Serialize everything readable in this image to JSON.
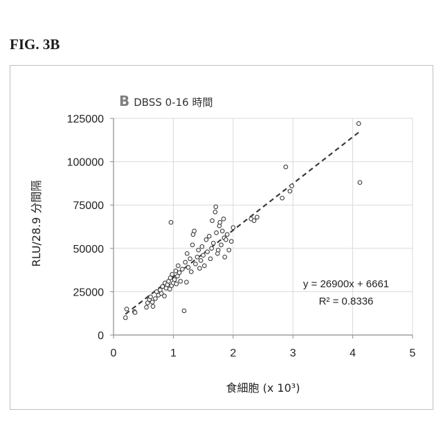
{
  "figure_label": "FIG. 3B",
  "chart_data": {
    "type": "scatter",
    "panel_letter": "B",
    "title": "DBSS 0-16 時間",
    "xlabel": "食細胞 (x 10³)",
    "ylabel": "RLU/28.9 分間隔",
    "xlim": [
      0,
      5
    ],
    "ylim": [
      0,
      125000
    ],
    "xticks": [
      "0",
      "1",
      "2",
      "3",
      "4",
      "5"
    ],
    "yticks": [
      "0",
      "25000",
      "50000",
      "75000",
      "100000",
      "125000"
    ],
    "grid": true,
    "trendline": {
      "slope": 26900,
      "intercept": 6661,
      "style": "dashed"
    },
    "annotations": [
      "y = 26900x + 6661",
      "R² = 0.8336"
    ],
    "points": [
      [
        0.2,
        10000
      ],
      [
        0.22,
        15000
      ],
      [
        0.35,
        13500
      ],
      [
        0.36,
        13000
      ],
      [
        0.55,
        16000
      ],
      [
        0.57,
        18500
      ],
      [
        0.6,
        20500
      ],
      [
        0.62,
        22000
      ],
      [
        0.65,
        19000
      ],
      [
        0.66,
        16500
      ],
      [
        0.7,
        21000
      ],
      [
        0.72,
        25000
      ],
      [
        0.75,
        23000
      ],
      [
        0.78,
        26000
      ],
      [
        0.8,
        24000
      ],
      [
        0.82,
        28000
      ],
      [
        0.85,
        22500
      ],
      [
        0.86,
        30000
      ],
      [
        0.88,
        27000
      ],
      [
        0.9,
        29000
      ],
      [
        0.92,
        31000
      ],
      [
        0.94,
        26500
      ],
      [
        0.95,
        33000
      ],
      [
        0.96,
        65000
      ],
      [
        0.97,
        28500
      ],
      [
        0.98,
        35000
      ],
      [
        1.0,
        30000
      ],
      [
        1.02,
        32000
      ],
      [
        1.04,
        37000
      ],
      [
        1.05,
        29500
      ],
      [
        1.07,
        34000
      ],
      [
        1.08,
        40000
      ],
      [
        1.1,
        36000
      ],
      [
        1.12,
        31000
      ],
      [
        1.15,
        38000
      ],
      [
        1.18,
        14000
      ],
      [
        1.2,
        42000
      ],
      [
        1.22,
        30500
      ],
      [
        1.23,
        47000
      ],
      [
        1.25,
        39000
      ],
      [
        1.28,
        44000
      ],
      [
        1.3,
        36500
      ],
      [
        1.32,
        52000
      ],
      [
        1.33,
        58000
      ],
      [
        1.35,
        60000
      ],
      [
        1.37,
        41000
      ],
      [
        1.4,
        45000
      ],
      [
        1.42,
        49000
      ],
      [
        1.44,
        38500
      ],
      [
        1.46,
        43000
      ],
      [
        1.48,
        51000
      ],
      [
        1.5,
        46000
      ],
      [
        1.52,
        40000
      ],
      [
        1.55,
        55000
      ],
      [
        1.57,
        48000
      ],
      [
        1.6,
        57000
      ],
      [
        1.62,
        44000
      ],
      [
        1.64,
        50000
      ],
      [
        1.65,
        66000
      ],
      [
        1.67,
        53000
      ],
      [
        1.7,
        71000
      ],
      [
        1.71,
        74000
      ],
      [
        1.72,
        59000
      ],
      [
        1.74,
        47000
      ],
      [
        1.75,
        49000
      ],
      [
        1.77,
        63000
      ],
      [
        1.78,
        65000
      ],
      [
        1.8,
        52000
      ],
      [
        1.82,
        60000
      ],
      [
        1.84,
        67000
      ],
      [
        1.85,
        56000
      ],
      [
        1.86,
        45000
      ],
      [
        1.88,
        55000
      ],
      [
        1.9,
        58000
      ],
      [
        1.93,
        49000
      ],
      [
        1.97,
        54000
      ],
      [
        2.0,
        62000
      ],
      [
        2.3,
        67000
      ],
      [
        2.35,
        66000
      ],
      [
        2.4,
        68000
      ],
      [
        2.82,
        79000
      ],
      [
        2.88,
        97000
      ],
      [
        2.95,
        83000
      ],
      [
        2.98,
        86000
      ],
      [
        4.1,
        122000
      ],
      [
        4.12,
        88000
      ]
    ]
  }
}
